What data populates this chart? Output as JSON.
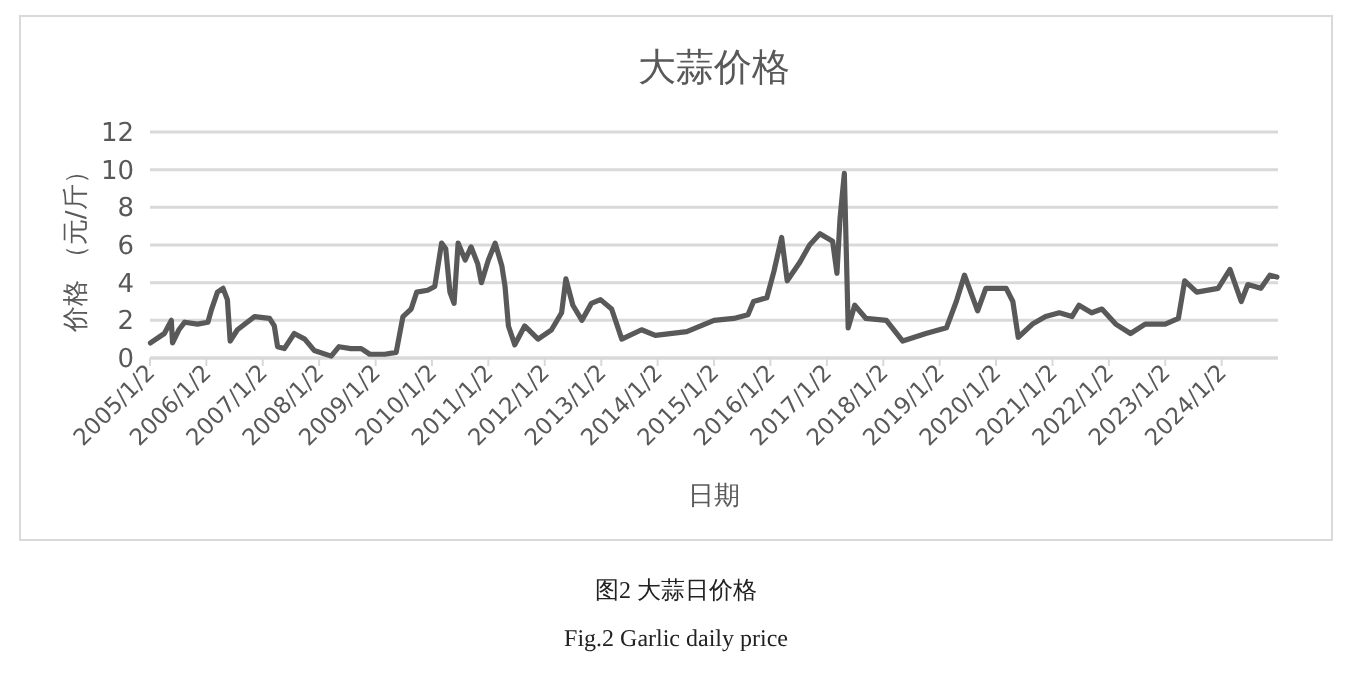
{
  "chart_data": {
    "type": "line",
    "title": "大蒜价格",
    "xlabel": "日期",
    "ylabel": "价格 （元/斤）",
    "annotations": [
      "图2  大蒜日价格",
      "Fig.2 Garlic daily price"
    ],
    "xlim": [
      "2005-01-02",
      "2025-01-01"
    ],
    "ylim": [
      0,
      12
    ],
    "yticks": [
      0,
      2,
      4,
      6,
      8,
      10,
      12
    ],
    "xticks": [
      {
        "value": "2005-01-02",
        "label": "2005/1/2"
      },
      {
        "value": "2006-01-02",
        "label": "2006/1/2"
      },
      {
        "value": "2007-01-02",
        "label": "2007/1/2"
      },
      {
        "value": "2008-01-02",
        "label": "2008/1/2"
      },
      {
        "value": "2009-01-02",
        "label": "2009/1/2"
      },
      {
        "value": "2010-01-02",
        "label": "2010/1/2"
      },
      {
        "value": "2011-01-02",
        "label": "2011/1/2"
      },
      {
        "value": "2012-01-02",
        "label": "2012/1/2"
      },
      {
        "value": "2013-01-02",
        "label": "2013/1/2"
      },
      {
        "value": "2014-01-02",
        "label": "2014/1/2"
      },
      {
        "value": "2015-01-02",
        "label": "2015/1/2"
      },
      {
        "value": "2016-01-02",
        "label": "2016/1/2"
      },
      {
        "value": "2017-01-02",
        "label": "2017/1/2"
      },
      {
        "value": "2018-01-02",
        "label": "2018/1/2"
      },
      {
        "value": "2019-01-02",
        "label": "2019/1/2"
      },
      {
        "value": "2020-01-02",
        "label": "2020/1/2"
      },
      {
        "value": "2021-01-02",
        "label": "2021/1/2"
      },
      {
        "value": "2022-01-02",
        "label": "2022/1/2"
      },
      {
        "value": "2023-01-02",
        "label": "2023/1/2"
      },
      {
        "value": "2024-01-02",
        "label": "2024/1/2"
      }
    ],
    "grid": "y",
    "marker": "none",
    "line_style": "solid",
    "x": [
      "2005-01-05",
      "2005-04-05",
      "2005-05-20",
      "2005-05-28",
      "2005-07-08",
      "2005-08-15",
      "2005-11-05",
      "2006-01-12",
      "2006-02-05",
      "2006-03-15",
      "2006-04-20",
      "2006-05-18",
      "2006-06-05",
      "2006-07-22",
      "2006-11-10",
      "2007-02-15",
      "2007-03-18",
      "2007-04-08",
      "2007-05-22",
      "2007-07-25",
      "2007-10-01",
      "2007-12-01",
      "2008-03-20",
      "2008-05-10",
      "2008-07-25",
      "2008-10-01",
      "2008-11-25",
      "2009-03-02",
      "2009-05-15",
      "2009-06-28",
      "2009-08-20",
      "2009-09-25",
      "2009-12-05",
      "2010-01-20",
      "2010-03-05",
      "2010-04-01",
      "2010-04-28",
      "2010-05-25",
      "2010-06-20",
      "2010-08-05",
      "2010-09-12",
      "2010-10-25",
      "2010-11-18",
      "2011-01-02",
      "2011-02-15",
      "2011-03-30",
      "2011-04-20",
      "2011-05-12",
      "2011-06-22",
      "2011-08-25",
      "2011-11-20",
      "2012-02-15",
      "2012-04-20",
      "2012-05-18",
      "2012-07-02",
      "2012-08-30",
      "2012-10-30",
      "2012-12-28",
      "2013-03-10",
      "2013-05-15",
      "2013-09-20",
      "2013-12-18",
      "2014-07-10",
      "2015-01-02",
      "2015-05-10",
      "2015-08-10",
      "2015-09-15",
      "2015-12-10",
      "2016-01-25",
      "2016-03-15",
      "2016-04-20",
      "2016-07-12",
      "2016-09-12",
      "2016-11-18",
      "2017-02-08",
      "2017-03-08",
      "2017-03-28",
      "2017-04-25",
      "2017-05-20",
      "2017-07-01",
      "2017-09-12",
      "2018-01-22",
      "2018-05-08",
      "2018-10-05",
      "2019-02-15",
      "2019-04-20",
      "2019-06-12",
      "2019-09-05",
      "2019-10-28",
      "2020-03-08",
      "2020-04-20",
      "2020-05-25",
      "2020-08-25",
      "2020-11-18",
      "2021-02-15",
      "2021-05-08",
      "2021-06-22",
      "2021-09-12",
      "2021-11-18",
      "2022-02-15",
      "2022-05-22",
      "2022-08-25",
      "2023-01-02",
      "2023-03-28",
      "2023-05-08",
      "2023-07-25",
      "2023-12-10",
      "2024-02-25",
      "2024-05-08",
      "2024-06-20",
      "2024-09-12",
      "2024-11-10",
      "2024-12-25"
    ],
    "series": [
      {
        "color": "#595959",
        "values": [
          0.8,
          1.3,
          2.0,
          0.8,
          1.5,
          1.9,
          1.8,
          1.9,
          2.6,
          3.5,
          3.7,
          3.1,
          0.9,
          1.5,
          2.2,
          2.1,
          1.7,
          0.6,
          0.5,
          1.3,
          1.0,
          0.4,
          0.1,
          0.6,
          0.5,
          0.5,
          0.2,
          0.2,
          0.3,
          2.2,
          2.6,
          3.5,
          3.6,
          3.8,
          6.1,
          5.8,
          3.5,
          2.9,
          6.1,
          5.2,
          5.9,
          5.0,
          4.0,
          5.2,
          6.1,
          4.9,
          3.8,
          1.7,
          0.7,
          1.7,
          1.0,
          1.5,
          2.4,
          4.2,
          2.8,
          2.0,
          2.9,
          3.1,
          2.6,
          1.0,
          1.5,
          1.2,
          1.4,
          2.0,
          2.1,
          2.3,
          3.0,
          3.2,
          4.6,
          6.4,
          4.1,
          5.1,
          6.0,
          6.6,
          6.2,
          4.5,
          7.4,
          9.8,
          1.6,
          2.8,
          2.1,
          2.0,
          0.9,
          1.3,
          1.6,
          3.0,
          4.4,
          2.5,
          3.7,
          3.7,
          3.0,
          1.1,
          1.8,
          2.2,
          2.4,
          2.2,
          2.8,
          2.4,
          2.6,
          1.8,
          1.3,
          1.8,
          1.8,
          2.1,
          4.1,
          3.5,
          3.7,
          4.7,
          3.0,
          3.9,
          3.7,
          4.4,
          4.3
        ]
      }
    ]
  }
}
